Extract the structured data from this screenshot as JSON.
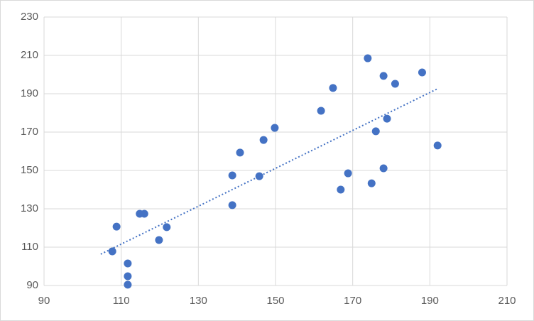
{
  "chart_data": {
    "type": "scatter",
    "color": "#4472c4",
    "grid": true,
    "trendline": "linear",
    "x": [
      107.7,
      108.8,
      111.7,
      111.7,
      111.7,
      114.8,
      116,
      119.8,
      121.8,
      138.8,
      138.8,
      140.8,
      145.8,
      146.9,
      149.8,
      161.8,
      164.9,
      166.9,
      168.8,
      173.9,
      174.9,
      176,
      178,
      178,
      178.9,
      181,
      188,
      192
    ],
    "values": [
      107.8,
      120.7,
      101.5,
      94.8,
      90.4,
      127.4,
      127.4,
      113.7,
      120.4,
      147.4,
      131.9,
      159.3,
      147,
      165.9,
      172.2,
      181.1,
      193,
      140,
      148.5,
      208.5,
      143.3,
      170.4,
      199.3,
      151.1,
      177,
      195.2,
      201.1,
      163
    ],
    "xlim": [
      90,
      210
    ],
    "xticks": [
      90,
      110,
      130,
      150,
      170,
      190,
      210
    ],
    "ylim": [
      90,
      230
    ],
    "yticks": [
      90,
      110,
      130,
      150,
      170,
      190,
      210,
      230
    ]
  }
}
